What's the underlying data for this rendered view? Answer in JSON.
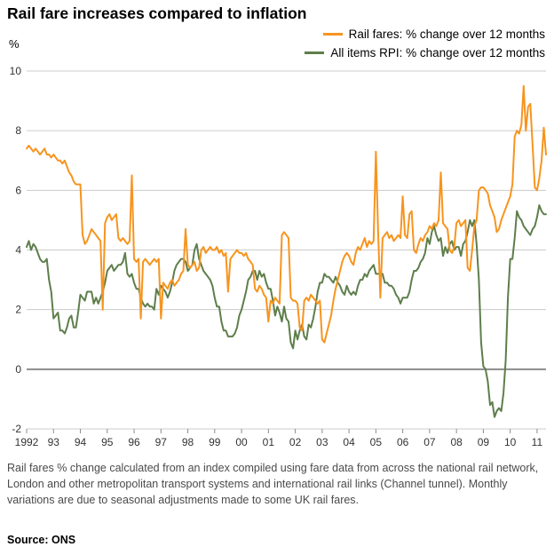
{
  "page": {
    "title": "Rail fare increases compared to inflation",
    "ylabel_symbol": "%",
    "footnote": "Rail fares % change calculated from an index compiled using fare data from across the national rail network, London and other metropolitan transport systems and international rail links (Channel tunnel). Monthly variations are due to seasonal adjustments made to some UK rail fares.",
    "source": "Source: ONS"
  },
  "chart_data": {
    "type": "line",
    "title": "Rail fare increases compared to inflation",
    "xlabel": "",
    "ylabel": "%",
    "ylim": [
      -2,
      10
    ],
    "yticks": [
      -2,
      0,
      2,
      4,
      6,
      8,
      10
    ],
    "grid": true,
    "legend_position": "top-right",
    "x_start_year": 1992,
    "frequency": "monthly",
    "xtick_labels": [
      "1992",
      "93",
      "94",
      "95",
      "96",
      "97",
      "98",
      "99",
      "00",
      "01",
      "02",
      "03",
      "04",
      "05",
      "06",
      "07",
      "08",
      "09",
      "10",
      "11"
    ],
    "colors": {
      "zero_line": "#8c8c8c",
      "grid_line": "#cccccc"
    },
    "series": [
      {
        "name": "Rail fares: % change over 12 months",
        "color": "#F7941E",
        "values": [
          7.4,
          7.5,
          7.4,
          7.3,
          7.4,
          7.3,
          7.2,
          7.3,
          7.4,
          7.2,
          7.2,
          7.1,
          7.2,
          7.1,
          7.0,
          7.0,
          6.9,
          7.0,
          6.8,
          6.6,
          6.5,
          6.3,
          6.2,
          6.2,
          6.2,
          4.5,
          4.2,
          4.3,
          4.5,
          4.7,
          4.6,
          4.5,
          4.4,
          4.3,
          2.0,
          4.9,
          5.1,
          5.2,
          5.0,
          5.1,
          5.2,
          4.4,
          4.3,
          4.4,
          4.3,
          4.2,
          4.3,
          6.5,
          3.7,
          3.6,
          3.7,
          1.7,
          3.6,
          3.7,
          3.6,
          3.5,
          3.6,
          3.7,
          3.6,
          3.7,
          1.7,
          2.9,
          2.8,
          2.7,
          2.9,
          3.0,
          2.8,
          2.9,
          3.0,
          3.2,
          3.3,
          4.7,
          3.5,
          3.4,
          3.5,
          3.6,
          3.3,
          3.4,
          4.0,
          4.1,
          3.9,
          4.0,
          4.1,
          4.0,
          4.0,
          4.1,
          3.9,
          4.0,
          3.8,
          3.9,
          2.6,
          3.7,
          3.8,
          3.9,
          4.0,
          3.9,
          3.9,
          3.8,
          3.9,
          3.7,
          3.6,
          3.5,
          2.7,
          2.6,
          2.8,
          2.7,
          2.5,
          2.4,
          1.6,
          2.3,
          2.2,
          2.4,
          2.3,
          2.2,
          4.5,
          4.6,
          4.5,
          4.4,
          2.4,
          2.3,
          2.3,
          2.2,
          1.4,
          1.3,
          2.3,
          2.4,
          2.3,
          2.5,
          2.4,
          2.3,
          2.2,
          2.3,
          1.0,
          0.9,
          1.2,
          1.5,
          1.8,
          2.3,
          2.7,
          3.0,
          3.3,
          3.6,
          3.8,
          3.9,
          3.8,
          3.6,
          3.5,
          3.9,
          4.1,
          4.0,
          4.2,
          4.4,
          4.1,
          4.3,
          4.2,
          4.3,
          7.3,
          4.6,
          2.4,
          4.4,
          4.5,
          4.6,
          4.4,
          4.5,
          4.3,
          4.4,
          4.5,
          4.4,
          5.8,
          4.5,
          4.4,
          5.2,
          5.3,
          4.0,
          3.9,
          4.2,
          4.4,
          4.3,
          4.5,
          4.6,
          4.8,
          4.7,
          4.9,
          4.8,
          5.0,
          6.6,
          4.9,
          4.8,
          4.7,
          4.0,
          3.9,
          4.1,
          4.9,
          5.0,
          4.8,
          4.9,
          5.0,
          3.4,
          3.3,
          4.0,
          4.8,
          5.0,
          6.0,
          6.1,
          6.1,
          6.0,
          5.9,
          5.5,
          5.3,
          5.1,
          4.6,
          4.7,
          5.0,
          5.2,
          5.4,
          5.6,
          5.8,
          6.2,
          7.8,
          8.0,
          7.9,
          8.2,
          9.5,
          8.0,
          8.8,
          8.9,
          7.5,
          6.1,
          6.0,
          6.4,
          7.0,
          8.1,
          7.2
        ]
      },
      {
        "name": "All items RPI: % change over 12 months",
        "color": "#5E7E4B",
        "values": [
          4.1,
          4.3,
          4.0,
          4.2,
          4.1,
          3.9,
          3.7,
          3.6,
          3.6,
          3.7,
          3.0,
          2.6,
          1.7,
          1.8,
          1.9,
          1.3,
          1.3,
          1.2,
          1.4,
          1.7,
          1.8,
          1.4,
          1.4,
          1.9,
          2.5,
          2.4,
          2.3,
          2.6,
          2.6,
          2.6,
          2.2,
          2.4,
          2.2,
          2.4,
          2.6,
          2.9,
          3.3,
          3.4,
          3.5,
          3.3,
          3.4,
          3.5,
          3.5,
          3.6,
          3.9,
          3.2,
          3.1,
          3.2,
          2.9,
          2.7,
          2.7,
          2.4,
          2.2,
          2.1,
          2.2,
          2.1,
          2.1,
          2.0,
          2.7,
          2.5,
          2.8,
          2.7,
          2.6,
          2.4,
          2.6,
          2.9,
          3.3,
          3.5,
          3.6,
          3.7,
          3.7,
          3.6,
          3.3,
          3.4,
          3.5,
          4.0,
          4.2,
          3.7,
          3.5,
          3.3,
          3.2,
          3.1,
          3.0,
          2.8,
          2.4,
          2.1,
          2.1,
          1.6,
          1.3,
          1.3,
          1.1,
          1.1,
          1.1,
          1.2,
          1.4,
          1.8,
          2.0,
          2.3,
          2.6,
          3.0,
          3.1,
          3.3,
          3.3,
          3.0,
          3.3,
          3.1,
          3.2,
          2.9,
          2.7,
          2.7,
          2.3,
          1.8,
          2.1,
          1.9,
          1.6,
          2.1,
          1.7,
          1.6,
          0.9,
          0.7,
          1.3,
          1.0,
          1.3,
          1.5,
          1.1,
          1.0,
          1.5,
          1.4,
          1.7,
          2.1,
          2.6,
          2.9,
          2.9,
          3.2,
          3.1,
          3.1,
          3.0,
          2.9,
          3.1,
          2.9,
          2.8,
          2.6,
          2.5,
          2.8,
          2.6,
          2.5,
          2.6,
          2.5,
          2.8,
          3.0,
          3.0,
          3.2,
          3.1,
          3.3,
          3.4,
          3.5,
          3.2,
          3.2,
          3.2,
          3.2,
          2.9,
          2.9,
          2.8,
          2.8,
          2.7,
          2.5,
          2.4,
          2.2,
          2.4,
          2.4,
          2.4,
          2.6,
          3.0,
          3.3,
          3.3,
          3.4,
          3.6,
          3.7,
          3.9,
          4.4,
          4.2,
          4.6,
          4.8,
          4.5,
          4.3,
          4.4,
          3.8,
          4.1,
          3.9,
          4.2,
          4.3,
          4.0,
          4.1,
          4.1,
          3.8,
          4.2,
          4.3,
          4.6,
          5.0,
          4.8,
          5.0,
          4.2,
          3.0,
          0.9,
          0.1,
          0.0,
          -0.4,
          -1.2,
          -1.1,
          -1.6,
          -1.4,
          -1.3,
          -1.4,
          -0.8,
          0.3,
          2.4,
          3.7,
          3.7,
          4.4,
          5.3,
          5.1,
          5.0,
          4.8,
          4.7,
          4.6,
          4.5,
          4.7,
          4.8,
          5.1,
          5.5,
          5.3,
          5.2,
          5.2
        ]
      }
    ],
    "source": "Source: ONS"
  }
}
